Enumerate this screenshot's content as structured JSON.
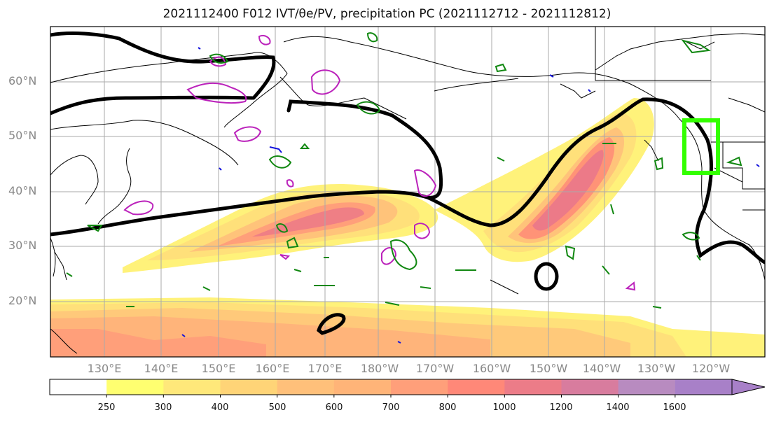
{
  "title": "2021112400 F012 IVT/θe/PV, precipitation PC (2021112712 - 2021112812)",
  "lat_labels": [
    "60°N",
    "50°N",
    "40°N",
    "30°N",
    "20°N"
  ],
  "lon_labels": [
    "130°E",
    "140°E",
    "150°E",
    "160°E",
    "170°E",
    "180°W",
    "170°W",
    "160°W",
    "150°W",
    "140°W",
    "130°W",
    "120°W"
  ],
  "colorbar": {
    "labels": [
      "250",
      "300",
      "400",
      "500",
      "600",
      "700",
      "800",
      "1000",
      "1200",
      "1400",
      "1600"
    ],
    "colors": [
      "#ffffff",
      "#ffff70",
      "#ffe87a",
      "#ffd477",
      "#ffc07a",
      "#ffb478",
      "#ff9f7a",
      "#ff8878",
      "#ec7c88",
      "#d87c9e",
      "#b88bc0",
      "#a880c8"
    ]
  },
  "colors": {
    "contour_theta": "#000000",
    "contour_pv": "#bb22bb",
    "contour_precip": "#118811",
    "target_box": "#33ff00"
  }
}
